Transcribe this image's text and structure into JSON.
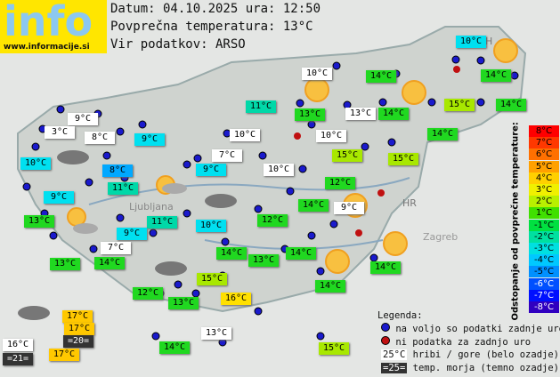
{
  "header": {
    "logo": "info",
    "site": "www.informacije.si",
    "date": "Datum: 04.10.2025 ura: 12:50",
    "avg": "Povprečna temperatura: 13°C",
    "source": "Vir podatkov: ARSO"
  },
  "map_labels": [
    "Ljubljana",
    "Zagreb",
    "HR",
    "H"
  ],
  "stations": [
    {
      "label": "10°C",
      "color": "#00e0f0"
    },
    {
      "label": "10°C",
      "color": "#ffffff"
    },
    {
      "label": "14°C",
      "color": "#20d820"
    },
    {
      "label": "14°C",
      "color": "#20d820"
    },
    {
      "label": "11°C",
      "color": "#00d8a8"
    },
    {
      "label": "13°C",
      "color": "#20d820"
    },
    {
      "label": "13°C",
      "color": "#ffffff"
    },
    {
      "label": "14°C",
      "color": "#20d820"
    },
    {
      "label": "15°C",
      "color": "#a8e800"
    },
    {
      "label": "14°C",
      "color": "#20d820"
    },
    {
      "label": "9°C",
      "color": "#ffffff"
    },
    {
      "label": "3°C",
      "color": "#ffffff"
    },
    {
      "label": "8°C",
      "color": "#ffffff"
    },
    {
      "label": "9°C",
      "color": "#00e0f0"
    },
    {
      "label": "10°C",
      "color": "#ffffff"
    },
    {
      "label": "10°C",
      "color": "#ffffff"
    },
    {
      "label": "14°C",
      "color": "#20d820"
    },
    {
      "label": "10°C",
      "color": "#00e0f0"
    },
    {
      "label": "8°C",
      "color": "#00a8ff"
    },
    {
      "label": "9°C",
      "color": "#00e0f0"
    },
    {
      "label": "7°C",
      "color": "#ffffff"
    },
    {
      "label": "10°C",
      "color": "#ffffff"
    },
    {
      "label": "15°C",
      "color": "#a8e800"
    },
    {
      "label": "15°C",
      "color": "#a8e800"
    },
    {
      "label": "11°C",
      "color": "#00d8a8"
    },
    {
      "label": "12°C",
      "color": "#20d820"
    },
    {
      "label": "9°C",
      "color": "#00e0f0"
    },
    {
      "label": "9°C",
      "color": "#ffffff"
    },
    {
      "label": "14°C",
      "color": "#20d820"
    },
    {
      "label": "13°C",
      "color": "#20d820"
    },
    {
      "label": "11°C",
      "color": "#00d8a8"
    },
    {
      "label": "10°C",
      "color": "#00e0f0"
    },
    {
      "label": "12°C",
      "color": "#20d820"
    },
    {
      "label": "9°C",
      "color": "#00e0f0"
    },
    {
      "label": "7°C",
      "color": "#ffffff"
    },
    {
      "label": "14°C",
      "color": "#20d820"
    },
    {
      "label": "14°C",
      "color": "#20d820"
    },
    {
      "label": "13°C",
      "color": "#20d820"
    },
    {
      "label": "14°C",
      "color": "#20d820"
    },
    {
      "label": "13°C",
      "color": "#20d820"
    },
    {
      "label": "15°C",
      "color": "#a8e800"
    },
    {
      "label": "14°C",
      "color": "#20d820"
    },
    {
      "label": "14°C",
      "color": "#20d820"
    },
    {
      "label": "12°C",
      "color": "#20d820"
    },
    {
      "label": "13°C",
      "color": "#20d820"
    },
    {
      "label": "16°C",
      "color": "#ffe000"
    },
    {
      "label": "17°C",
      "color": "#ffc800"
    },
    {
      "label": "17°C",
      "color": "#ffc800"
    },
    {
      "label": "=20=",
      "color": "#333333"
    },
    {
      "label": "16°C",
      "color": "#ffffff"
    },
    {
      "label": "=21=",
      "color": "#333333"
    },
    {
      "label": "17°C",
      "color": "#ffc800"
    },
    {
      "label": "13°C",
      "color": "#ffffff"
    },
    {
      "label": "14°C",
      "color": "#20d820"
    },
    {
      "label": "15°C",
      "color": "#a8e800"
    }
  ],
  "scale": {
    "title": "Odstopanje od povprečne temperature:",
    "steps": [
      {
        "label": "8°C",
        "color": "#ff0000"
      },
      {
        "label": "7°C",
        "color": "#ff3800"
      },
      {
        "label": "6°C",
        "color": "#ff7000"
      },
      {
        "label": "5°C",
        "color": "#ffa000"
      },
      {
        "label": "4°C",
        "color": "#ffd000"
      },
      {
        "label": "3°C",
        "color": "#f0f000"
      },
      {
        "label": "2°C",
        "color": "#b8f000"
      },
      {
        "label": "1°C",
        "color": "#40e000"
      },
      {
        "label": "-1°C",
        "color": "#00e040"
      },
      {
        "label": "-2°C",
        "color": "#00e0a0"
      },
      {
        "label": "-3°C",
        "color": "#00e0e0"
      },
      {
        "label": "-4°C",
        "color": "#00c8ff"
      },
      {
        "label": "-5°C",
        "color": "#0090ff"
      },
      {
        "label": "-6°C",
        "color": "#0050ff"
      },
      {
        "label": "-7°C",
        "color": "#0010ff"
      },
      {
        "label": "-8°C",
        "color": "#3000c0"
      }
    ]
  },
  "legend": {
    "title": "Legenda:",
    "available": "na voljo so podatki zadnje ure",
    "missing": "ni podatka za zadnjo uro",
    "mountain_sample": "25°C",
    "mountain": "hribi / gore (belo ozadje)",
    "sea_sample": "=25=",
    "sea": "temp. morja (temno ozadje)"
  }
}
